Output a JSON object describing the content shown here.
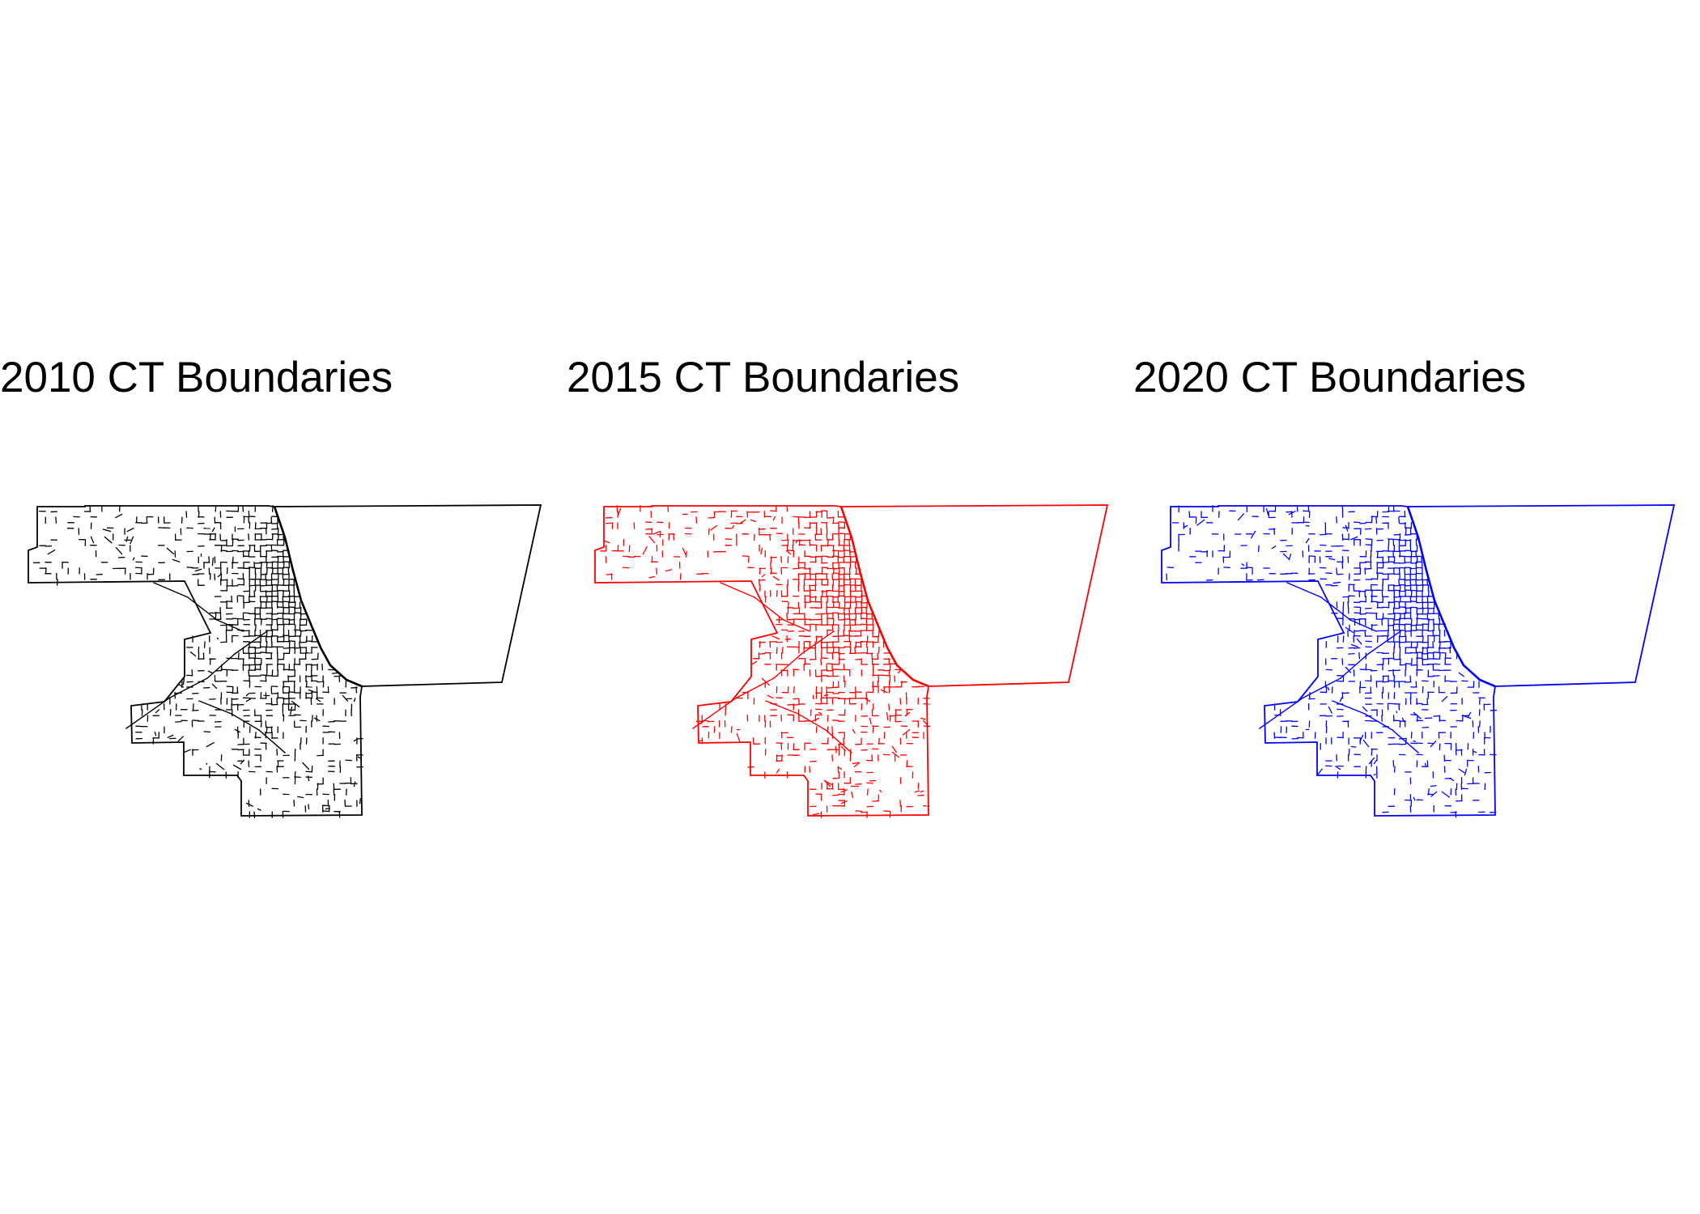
{
  "panels": [
    {
      "title": "2010 CT Boundaries",
      "stroke": "#000000"
    },
    {
      "title": "2015 CT Boundaries",
      "stroke": "#ff0000"
    },
    {
      "title": "2020 CT Boundaries",
      "stroke": "#0000ff"
    }
  ]
}
